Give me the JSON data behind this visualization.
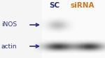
{
  "bg_color": "#f5f3f0",
  "blot_bg": "#f8f7f5",
  "label_iNOS": "iNOS",
  "label_actin": "actin",
  "label_SC": "SC",
  "label_siRNA": "siRNA",
  "SC_color": "#2d2d7a",
  "siRNA_color": "#cc7722",
  "arrow_color": "#2d2d7a",
  "label_color": "#2d2d7a",
  "font_size_label": 6.5,
  "font_size_header": 7.5
}
